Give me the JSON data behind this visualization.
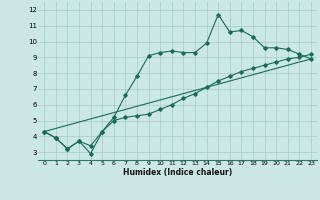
{
  "xlabel": "Humidex (Indice chaleur)",
  "ylabel": "",
  "bg_color": "#cce8e4",
  "line_color": "#1a6b5a",
  "grid_color": "#aacfca",
  "xlim": [
    -0.5,
    23.5
  ],
  "ylim": [
    2.5,
    12.5
  ],
  "xticks": [
    0,
    1,
    2,
    3,
    4,
    5,
    6,
    7,
    8,
    9,
    10,
    11,
    12,
    13,
    14,
    15,
    16,
    17,
    18,
    19,
    20,
    21,
    22,
    23
  ],
  "yticks": [
    3,
    4,
    5,
    6,
    7,
    8,
    9,
    10,
    11,
    12
  ],
  "line1_x": [
    0,
    1,
    2,
    3,
    4,
    5,
    6,
    7,
    8,
    9,
    10,
    11,
    12,
    13,
    14,
    15,
    16,
    17,
    18,
    19,
    20,
    21,
    22,
    23
  ],
  "line1_y": [
    4.3,
    3.9,
    3.2,
    3.7,
    2.9,
    4.3,
    5.2,
    6.6,
    7.8,
    9.1,
    9.3,
    9.4,
    9.3,
    9.3,
    9.9,
    11.7,
    10.6,
    10.7,
    10.3,
    9.6,
    9.6,
    9.5,
    9.2,
    8.9
  ],
  "line2_x": [
    0,
    1,
    2,
    3,
    4,
    5,
    6,
    7,
    8,
    9,
    10,
    11,
    12,
    13,
    14,
    15,
    16,
    17,
    18,
    19,
    20,
    21,
    22,
    23
  ],
  "line2_y": [
    4.3,
    3.9,
    3.2,
    3.7,
    3.4,
    4.3,
    5.0,
    5.2,
    5.3,
    5.4,
    5.7,
    6.0,
    6.4,
    6.7,
    7.1,
    7.5,
    7.8,
    8.1,
    8.3,
    8.5,
    8.7,
    8.9,
    9.0,
    9.2
  ],
  "line3_x": [
    0,
    23
  ],
  "line3_y": [
    4.3,
    8.9
  ]
}
